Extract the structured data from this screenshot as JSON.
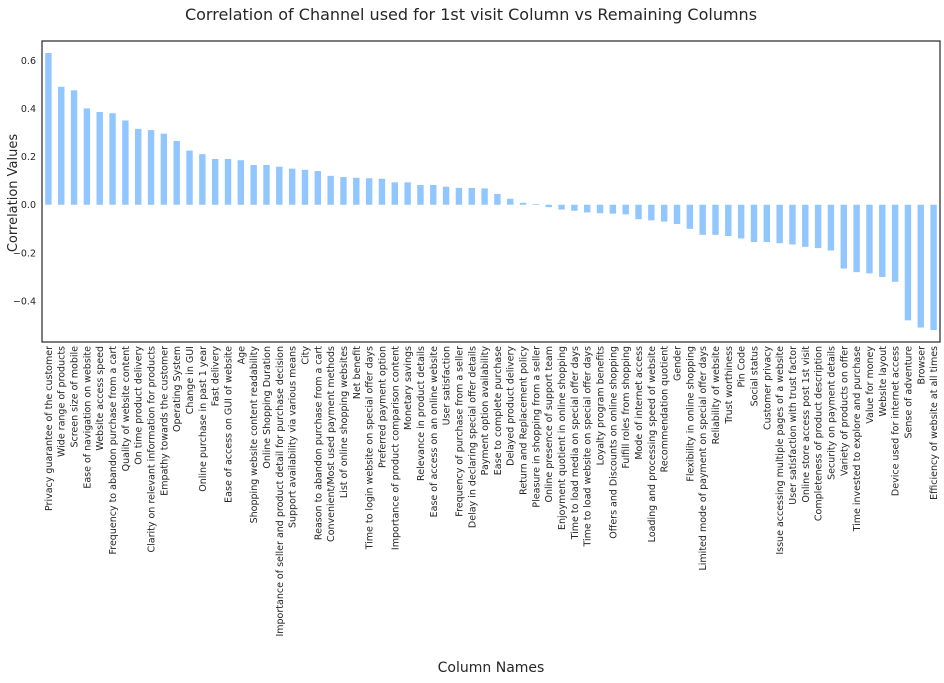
{
  "chart_data": {
    "type": "bar",
    "title": "Correlation of Channel used for 1st visit Column vs Remaining Columns",
    "xlabel": "Column Names",
    "ylabel": "Correlation Values",
    "ylim": [
      -0.57,
      0.68
    ],
    "yticks": [
      -0.4,
      -0.2,
      0.0,
      0.2,
      0.4,
      0.6
    ],
    "ytick_labels": [
      "−0.4",
      "−0.2",
      "0.0",
      "0.2",
      "0.4",
      "0.6"
    ],
    "bar_color": "#92c6ff",
    "grid": false,
    "categories": [
      "Privacy guarantee of the customer",
      "Wide range of products",
      "Screen size of mobile",
      "Ease of navigation on website",
      "Website access speed",
      "Frequency to abandon purchase from a cart",
      "Quality of website content",
      "On time product delivery",
      "Clarity on relevant information for products",
      "Empathy towards the customer",
      "Operating System",
      "Change in GUI",
      "Online purchase in past 1 year",
      "Fast delivery",
      "Ease of access on GUI of website",
      "Age",
      "Shopping website content readability",
      "Online Shopping Duration",
      "Importance of seller and product detail for purchase decision",
      "Support availability via various means",
      "City",
      "Reason to abandon purchase from a cart",
      "Convenient/Most used payment methods",
      "List of online shopping websites",
      "Net benefit",
      "Time to login website on special offer days",
      "Preferred payment option",
      "Importance of product comparison content",
      "Monetary savings",
      "Relevance in product details",
      "Ease of access on an online website",
      "User satisfaction",
      "Frequency of purchase from a seller",
      "Delay in declaring special offer details",
      "Payment option availability",
      "Ease to complete purchase",
      "Delayed product delivery",
      "Return and Replacement policy",
      "Pleasure in shopping from a seller",
      "Online presence of support team",
      "Enjoyment quotient in online shopping",
      "Time to load media on special offer days",
      "Time to load website on special offer days",
      "Loyalty program benefits",
      "Offers and Discounts on online shopping",
      "Fulfill roles from shopping",
      "Mode of internet access",
      "Loading and processing speed of website",
      "Recommendation quotient",
      "Gender",
      "Flexibility in online shopping",
      "Limited mode of payment on special offer days",
      "Reliability of website",
      "Trust worthiness",
      "Pin Code",
      "Social status",
      "Customer privacy",
      "Issue accessing multiple pages of a website",
      "User satisfaction with trust factor",
      "Online store access post 1st visit",
      "Completeness of product description",
      "Security on payment details",
      "Variety of products on offer",
      "Time invested to explore and purchase",
      "Value for money",
      "Website layout",
      "Device used for internet access",
      "Sense of adventure",
      "Browser",
      "Efficiency of website at all times"
    ],
    "values": [
      0.63,
      0.49,
      0.475,
      0.4,
      0.385,
      0.38,
      0.35,
      0.315,
      0.31,
      0.295,
      0.265,
      0.225,
      0.21,
      0.19,
      0.19,
      0.185,
      0.165,
      0.165,
      0.158,
      0.15,
      0.145,
      0.14,
      0.12,
      0.115,
      0.112,
      0.11,
      0.108,
      0.093,
      0.093,
      0.082,
      0.082,
      0.075,
      0.07,
      0.07,
      0.068,
      0.045,
      0.025,
      0.008,
      0.003,
      -0.01,
      -0.02,
      -0.025,
      -0.032,
      -0.035,
      -0.037,
      -0.04,
      -0.06,
      -0.065,
      -0.07,
      -0.08,
      -0.1,
      -0.125,
      -0.125,
      -0.13,
      -0.14,
      -0.155,
      -0.155,
      -0.16,
      -0.165,
      -0.175,
      -0.18,
      -0.19,
      -0.265,
      -0.28,
      -0.285,
      -0.3,
      -0.32,
      -0.48,
      -0.51,
      -0.52
    ]
  }
}
